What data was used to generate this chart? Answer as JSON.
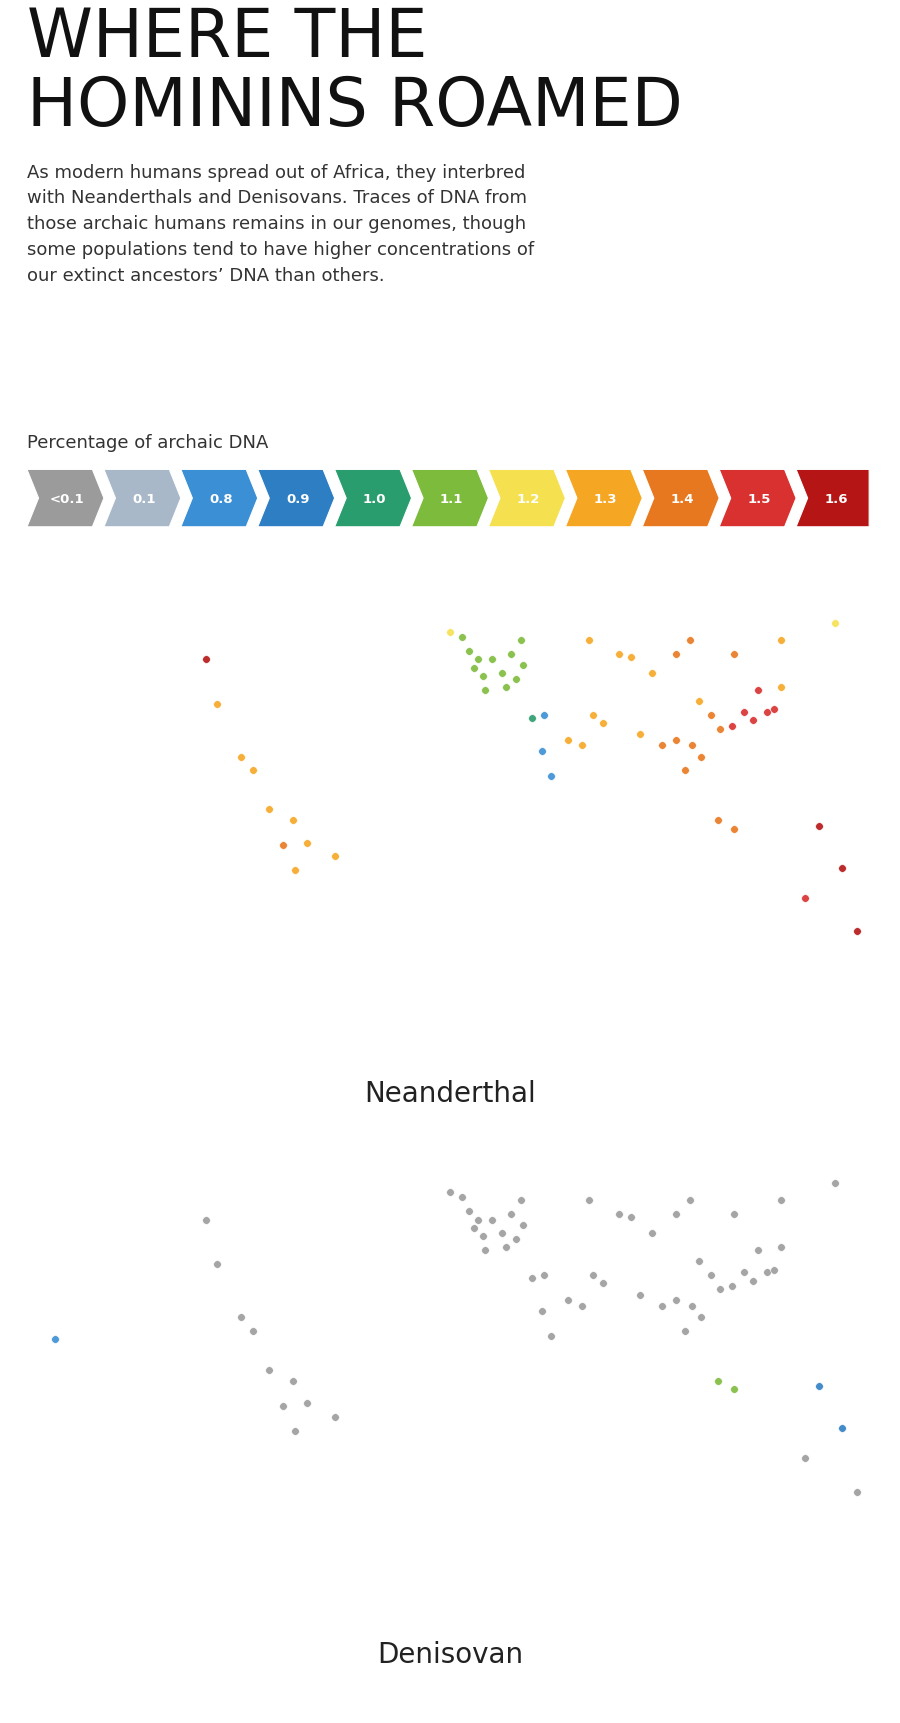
{
  "title_line1": "WHERE THE",
  "title_line2": "HOMININS ROAMED",
  "subtitle": "As modern humans spread out of Africa, they interbred\nwith Neanderthals and Denisovans. Traces of DNA from\nthose archaic humans remains in our genomes, though\nsome populations tend to have higher concentrations of\nour extinct ancestors’ DNA than others.",
  "legend_label": "Percentage of archaic DNA",
  "legend_values": [
    "<0.1",
    "0.1",
    "0.8",
    "0.9",
    "1.0",
    "1.1",
    "1.2",
    "1.3",
    "1.4",
    "1.5",
    "1.6"
  ],
  "legend_colors": [
    "#9b9b9b",
    "#a8b8c8",
    "#3b8fd4",
    "#2e7ec4",
    "#2a9d6e",
    "#7dbb3c",
    "#f5e050",
    "#f5a623",
    "#e87820",
    "#d93030",
    "#b51515"
  ],
  "neanderthal_label": "Neanderthal",
  "denisovan_label": "Denisovan",
  "map_land_color": "#d8d8d8",
  "map_border_color": "#bbbbbb",
  "map_ocean_color": "#ffffff",
  "dot_size": 65,
  "dot_edge_color": "#ffffff",
  "dot_edge_width": 0.4,
  "neanderthal_dots": [
    {
      "lon": -104,
      "lat": 54,
      "color": "#b51515"
    },
    {
      "lon": -99,
      "lat": 38,
      "color": "#f5a623"
    },
    {
      "lon": -89,
      "lat": 19,
      "color": "#f5a623"
    },
    {
      "lon": -84,
      "lat": 14,
      "color": "#f5a623"
    },
    {
      "lon": -77,
      "lat": 0,
      "color": "#f5a623"
    },
    {
      "lon": -67,
      "lat": -4,
      "color": "#f5a623"
    },
    {
      "lon": -71,
      "lat": -13,
      "color": "#e87820"
    },
    {
      "lon": -66,
      "lat": -22,
      "color": "#f5a623"
    },
    {
      "lon": -49,
      "lat": -17,
      "color": "#f5a623"
    },
    {
      "lon": -61,
      "lat": -12,
      "color": "#f5a623"
    },
    {
      "lon": 5,
      "lat": 62,
      "color": "#7dbb3c"
    },
    {
      "lon": 10,
      "lat": 51,
      "color": "#7dbb3c"
    },
    {
      "lon": 14,
      "lat": 48,
      "color": "#7dbb3c"
    },
    {
      "lon": 15,
      "lat": 43,
      "color": "#7dbb3c"
    },
    {
      "lon": 18,
      "lat": 54,
      "color": "#7dbb3c"
    },
    {
      "lon": 22,
      "lat": 49,
      "color": "#7dbb3c"
    },
    {
      "lon": 26,
      "lat": 56,
      "color": "#7dbb3c"
    },
    {
      "lon": 30,
      "lat": 61,
      "color": "#7dbb3c"
    },
    {
      "lon": 24,
      "lat": 44,
      "color": "#7dbb3c"
    },
    {
      "lon": 28,
      "lat": 47,
      "color": "#7dbb3c"
    },
    {
      "lon": 12,
      "lat": 54,
      "color": "#7dbb3c"
    },
    {
      "lon": 8,
      "lat": 57,
      "color": "#7dbb3c"
    },
    {
      "lon": 35,
      "lat": 33,
      "color": "#2a9d6e"
    },
    {
      "lon": 39,
      "lat": 21,
      "color": "#3b8fd4"
    },
    {
      "lon": 40,
      "lat": 34,
      "color": "#3b8fd4"
    },
    {
      "lon": 43,
      "lat": 12,
      "color": "#3b8fd4"
    },
    {
      "lon": 50,
      "lat": 25,
      "color": "#f5a623"
    },
    {
      "lon": 56,
      "lat": 23,
      "color": "#f5a623"
    },
    {
      "lon": 61,
      "lat": 34,
      "color": "#f5a623"
    },
    {
      "lon": 65,
      "lat": 31,
      "color": "#f5a623"
    },
    {
      "lon": 72,
      "lat": 56,
      "color": "#f5a623"
    },
    {
      "lon": 77,
      "lat": 55,
      "color": "#f5a623"
    },
    {
      "lon": 81,
      "lat": 27,
      "color": "#f5a623"
    },
    {
      "lon": 86,
      "lat": 49,
      "color": "#f5a623"
    },
    {
      "lon": 90,
      "lat": 23,
      "color": "#e87820"
    },
    {
      "lon": 96,
      "lat": 25,
      "color": "#e87820"
    },
    {
      "lon": 100,
      "lat": 14,
      "color": "#e87820"
    },
    {
      "lon": 103,
      "lat": 23,
      "color": "#e87820"
    },
    {
      "lon": 107,
      "lat": 19,
      "color": "#e87820"
    },
    {
      "lon": 106,
      "lat": 39,
      "color": "#f5a623"
    },
    {
      "lon": 111,
      "lat": 34,
      "color": "#e87820"
    },
    {
      "lon": 115,
      "lat": 29,
      "color": "#e87820"
    },
    {
      "lon": 120,
      "lat": 30,
      "color": "#d93030"
    },
    {
      "lon": 125,
      "lat": 35,
      "color": "#d93030"
    },
    {
      "lon": 129,
      "lat": 32,
      "color": "#d93030"
    },
    {
      "lon": 135,
      "lat": 35,
      "color": "#d93030"
    },
    {
      "lon": 131,
      "lat": 43,
      "color": "#d93030"
    },
    {
      "lon": 138,
      "lat": 36,
      "color": "#d93030"
    },
    {
      "lon": 141,
      "lat": 44,
      "color": "#f5a623"
    },
    {
      "lon": 96,
      "lat": 56,
      "color": "#e87820"
    },
    {
      "lon": 102,
      "lat": 61,
      "color": "#e87820"
    },
    {
      "lon": 121,
      "lat": 56,
      "color": "#e87820"
    },
    {
      "lon": 141,
      "lat": 61,
      "color": "#f5a623"
    },
    {
      "lon": 31,
      "lat": 52,
      "color": "#7dbb3c"
    },
    {
      "lon": 114,
      "lat": -4,
      "color": "#e87820"
    },
    {
      "lon": 121,
      "lat": -7,
      "color": "#e87820"
    },
    {
      "lon": 151,
      "lat": -32,
      "color": "#d93030"
    },
    {
      "lon": 173,
      "lat": -44,
      "color": "#b51515"
    },
    {
      "lon": 167,
      "lat": -21,
      "color": "#b51515"
    },
    {
      "lon": 157,
      "lat": -6,
      "color": "#b51515"
    },
    {
      "lon": 0,
      "lat": 64,
      "color": "#f5e050"
    },
    {
      "lon": 164,
      "lat": 67,
      "color": "#f5e050"
    },
    {
      "lon": 59,
      "lat": 61,
      "color": "#f5a623"
    }
  ],
  "denisovan_dots": [
    {
      "lon": -104,
      "lat": 54,
      "color": "#9b9b9b"
    },
    {
      "lon": -99,
      "lat": 38,
      "color": "#9b9b9b"
    },
    {
      "lon": -89,
      "lat": 19,
      "color": "#9b9b9b"
    },
    {
      "lon": -84,
      "lat": 14,
      "color": "#9b9b9b"
    },
    {
      "lon": -168,
      "lat": 11,
      "color": "#3b8fd4"
    },
    {
      "lon": -77,
      "lat": 0,
      "color": "#9b9b9b"
    },
    {
      "lon": -67,
      "lat": -4,
      "color": "#9b9b9b"
    },
    {
      "lon": -71,
      "lat": -13,
      "color": "#9b9b9b"
    },
    {
      "lon": -66,
      "lat": -22,
      "color": "#9b9b9b"
    },
    {
      "lon": -49,
      "lat": -17,
      "color": "#9b9b9b"
    },
    {
      "lon": -61,
      "lat": -12,
      "color": "#9b9b9b"
    },
    {
      "lon": 5,
      "lat": 62,
      "color": "#9b9b9b"
    },
    {
      "lon": 10,
      "lat": 51,
      "color": "#9b9b9b"
    },
    {
      "lon": 14,
      "lat": 48,
      "color": "#9b9b9b"
    },
    {
      "lon": 15,
      "lat": 43,
      "color": "#9b9b9b"
    },
    {
      "lon": 18,
      "lat": 54,
      "color": "#9b9b9b"
    },
    {
      "lon": 22,
      "lat": 49,
      "color": "#9b9b9b"
    },
    {
      "lon": 26,
      "lat": 56,
      "color": "#9b9b9b"
    },
    {
      "lon": 30,
      "lat": 61,
      "color": "#9b9b9b"
    },
    {
      "lon": 24,
      "lat": 44,
      "color": "#9b9b9b"
    },
    {
      "lon": 28,
      "lat": 47,
      "color": "#9b9b9b"
    },
    {
      "lon": 12,
      "lat": 54,
      "color": "#9b9b9b"
    },
    {
      "lon": 8,
      "lat": 57,
      "color": "#9b9b9b"
    },
    {
      "lon": 35,
      "lat": 33,
      "color": "#9b9b9b"
    },
    {
      "lon": 39,
      "lat": 21,
      "color": "#9b9b9b"
    },
    {
      "lon": 40,
      "lat": 34,
      "color": "#9b9b9b"
    },
    {
      "lon": 43,
      "lat": 12,
      "color": "#9b9b9b"
    },
    {
      "lon": 50,
      "lat": 25,
      "color": "#9b9b9b"
    },
    {
      "lon": 56,
      "lat": 23,
      "color": "#9b9b9b"
    },
    {
      "lon": 61,
      "lat": 34,
      "color": "#9b9b9b"
    },
    {
      "lon": 65,
      "lat": 31,
      "color": "#9b9b9b"
    },
    {
      "lon": 72,
      "lat": 56,
      "color": "#9b9b9b"
    },
    {
      "lon": 77,
      "lat": 55,
      "color": "#9b9b9b"
    },
    {
      "lon": 81,
      "lat": 27,
      "color": "#9b9b9b"
    },
    {
      "lon": 86,
      "lat": 49,
      "color": "#9b9b9b"
    },
    {
      "lon": 90,
      "lat": 23,
      "color": "#9b9b9b"
    },
    {
      "lon": 96,
      "lat": 25,
      "color": "#9b9b9b"
    },
    {
      "lon": 100,
      "lat": 14,
      "color": "#9b9b9b"
    },
    {
      "lon": 103,
      "lat": 23,
      "color": "#9b9b9b"
    },
    {
      "lon": 107,
      "lat": 19,
      "color": "#9b9b9b"
    },
    {
      "lon": 106,
      "lat": 39,
      "color": "#9b9b9b"
    },
    {
      "lon": 111,
      "lat": 34,
      "color": "#9b9b9b"
    },
    {
      "lon": 115,
      "lat": 29,
      "color": "#9b9b9b"
    },
    {
      "lon": 120,
      "lat": 30,
      "color": "#9b9b9b"
    },
    {
      "lon": 125,
      "lat": 35,
      "color": "#9b9b9b"
    },
    {
      "lon": 129,
      "lat": 32,
      "color": "#9b9b9b"
    },
    {
      "lon": 135,
      "lat": 35,
      "color": "#9b9b9b"
    },
    {
      "lon": 131,
      "lat": 43,
      "color": "#9b9b9b"
    },
    {
      "lon": 138,
      "lat": 36,
      "color": "#9b9b9b"
    },
    {
      "lon": 141,
      "lat": 44,
      "color": "#9b9b9b"
    },
    {
      "lon": 96,
      "lat": 56,
      "color": "#9b9b9b"
    },
    {
      "lon": 102,
      "lat": 61,
      "color": "#9b9b9b"
    },
    {
      "lon": 121,
      "lat": 56,
      "color": "#9b9b9b"
    },
    {
      "lon": 141,
      "lat": 61,
      "color": "#9b9b9b"
    },
    {
      "lon": 31,
      "lat": 52,
      "color": "#9b9b9b"
    },
    {
      "lon": 114,
      "lat": -4,
      "color": "#7dbb3c"
    },
    {
      "lon": 121,
      "lat": -7,
      "color": "#7dbb3c"
    },
    {
      "lon": 151,
      "lat": -32,
      "color": "#9b9b9b"
    },
    {
      "lon": 173,
      "lat": -44,
      "color": "#9b9b9b"
    },
    {
      "lon": 167,
      "lat": -21,
      "color": "#2e7ec4"
    },
    {
      "lon": 157,
      "lat": -6,
      "color": "#2e7ec4"
    },
    {
      "lon": 0,
      "lat": 64,
      "color": "#9b9b9b"
    },
    {
      "lon": 164,
      "lat": 67,
      "color": "#9b9b9b"
    },
    {
      "lon": 59,
      "lat": 61,
      "color": "#9b9b9b"
    }
  ]
}
